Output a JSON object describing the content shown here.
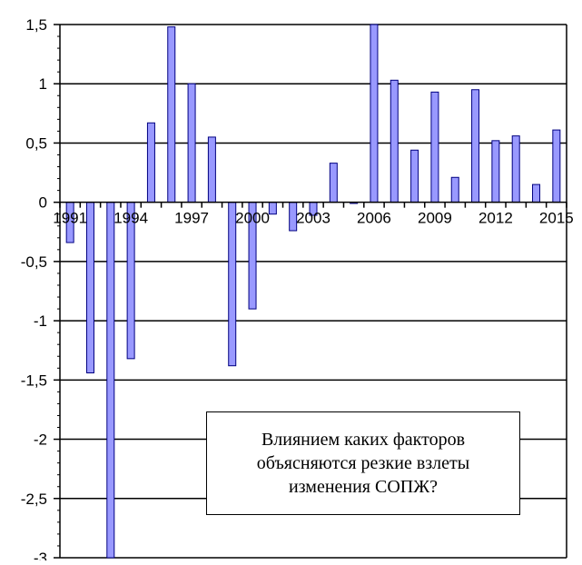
{
  "chart_data": {
    "type": "bar",
    "x": [
      1991,
      1992,
      1993,
      1994,
      1995,
      1996,
      1997,
      1998,
      1999,
      2000,
      2001,
      2002,
      2003,
      2004,
      2005,
      2006,
      2007,
      2008,
      2009,
      2010,
      2011,
      2012,
      2013,
      2014,
      2015
    ],
    "values": [
      -0.34,
      -1.44,
      -3.0,
      -1.32,
      0.67,
      1.48,
      1.0,
      0.55,
      -1.38,
      -0.9,
      -0.1,
      -0.24,
      -0.11,
      0.33,
      -0.01,
      1.5,
      1.03,
      0.44,
      0.93,
      0.21,
      0.95,
      0.52,
      0.56,
      0.15,
      0.61
    ],
    "x_tick_labels": [
      "1991",
      "1994",
      "1997",
      "2000",
      "2003",
      "2006",
      "2009",
      "2012",
      "2015"
    ],
    "x_tick_values": [
      1991,
      1994,
      1997,
      2000,
      2003,
      2006,
      2009,
      2012,
      2015
    ],
    "y_tick_labels": [
      "1,5",
      "1",
      "0,5",
      "0",
      "-0,5",
      "-1",
      "-1,5",
      "-2",
      "-2,5",
      "-3"
    ],
    "y_tick_values": [
      1.5,
      1,
      0.5,
      0,
      -0.5,
      -1,
      -1.5,
      -2,
      -2.5,
      -3
    ],
    "ylim": [
      -3,
      1.5
    ],
    "y_minor_step": 0.1,
    "grid": "horizontal major",
    "title": "",
    "xlabel": "",
    "ylabel": "",
    "colors": {
      "bar_fill": "#9999ff",
      "bar_stroke": "#000080",
      "axis": "#000000",
      "grid": "#000000"
    },
    "annotation": {
      "text": "Влиянием каких факторов\nобъясняются резкие взлеты\nизменения СОПЖ?"
    }
  }
}
